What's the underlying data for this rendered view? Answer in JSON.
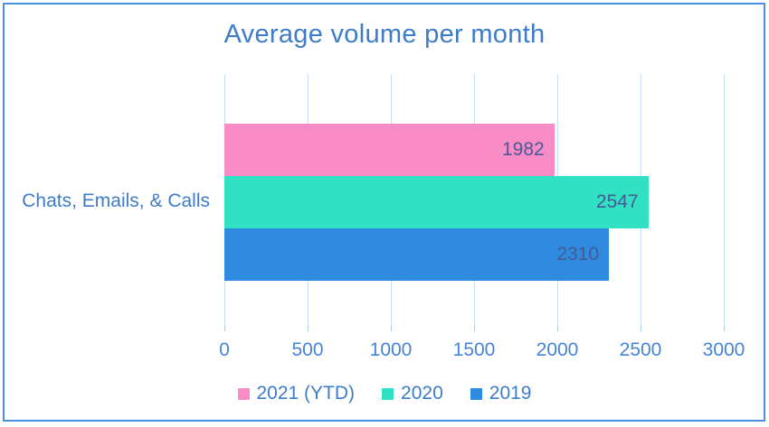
{
  "window": {
    "border_color": "#4a90e2",
    "background": "#ffffff"
  },
  "colors": {
    "title_text": "#3d7cc9",
    "category_text": "#3d7cc9",
    "axis_text": "#4583d8",
    "legend_text": "#3d7cc9",
    "value_label_text": "#475a96",
    "gridline": "#c9dcf5",
    "tick": "#a9c7ee"
  },
  "chart_data": {
    "type": "bar",
    "orientation": "horizontal",
    "title": "Average volume per month",
    "categories": [
      "Chats, Emails, & Calls"
    ],
    "series": [
      {
        "name": "2021 (YTD)",
        "values": [
          1982
        ],
        "color": "#f98bc6"
      },
      {
        "name": "2020",
        "values": [
          2547
        ],
        "color": "#30e1c3"
      },
      {
        "name": "2019",
        "values": [
          2310
        ],
        "color": "#2e8bdf"
      }
    ],
    "x_ticks": [
      0,
      500,
      1000,
      1500,
      2000,
      2500,
      3000
    ],
    "xlim": [
      0,
      3000
    ],
    "xlabel": "",
    "ylabel": "",
    "grid": "vertical",
    "legend_position": "bottom",
    "value_labels": "inside-end"
  }
}
